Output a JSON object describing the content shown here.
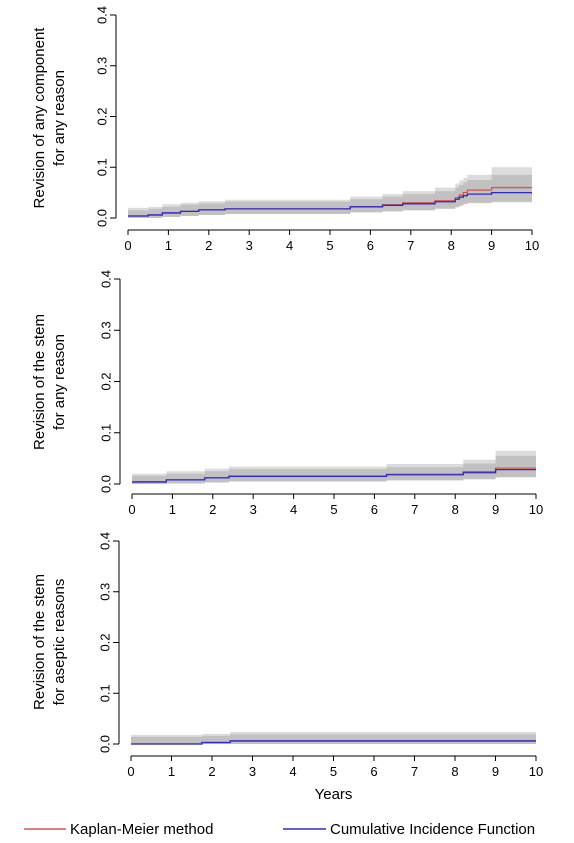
{
  "chart_data": [
    {
      "type": "line",
      "ylabel_lines": [
        "Revision of any component",
        "for any reason"
      ],
      "xlabel": "",
      "xlim": [
        0,
        10
      ],
      "ylim": [
        0,
        0.4
      ],
      "x_ticks": [
        "0",
        "1",
        "2",
        "3",
        "4",
        "5",
        "6",
        "7",
        "8",
        "9",
        "10"
      ],
      "y_ticks": [
        "0.0",
        "0.1",
        "0.2",
        "0.3",
        "0.4"
      ],
      "series": [
        {
          "name": "Kaplan-Meier method",
          "color": "#d9534f",
          "x": [
            0,
            0.5,
            0.85,
            1.3,
            1.75,
            2.4,
            5.5,
            6.3,
            6.8,
            7.6,
            8.1,
            8.2,
            8.3,
            8.4,
            9.0,
            10
          ],
          "y": [
            0.004,
            0.006,
            0.01,
            0.013,
            0.016,
            0.018,
            0.022,
            0.026,
            0.03,
            0.034,
            0.04,
            0.045,
            0.05,
            0.055,
            0.06,
            0.06
          ],
          "ci_lower": [
            0.0,
            0.0,
            0.002,
            0.004,
            0.006,
            0.008,
            0.011,
            0.013,
            0.016,
            0.019,
            0.022,
            0.025,
            0.028,
            0.031,
            0.033,
            0.033
          ],
          "ci_upper": [
            0.02,
            0.022,
            0.027,
            0.03,
            0.033,
            0.036,
            0.042,
            0.047,
            0.053,
            0.06,
            0.068,
            0.074,
            0.079,
            0.085,
            0.1,
            0.1
          ]
        },
        {
          "name": "Cumulative Incidence Function",
          "color": "#2b2bcc",
          "x": [
            0,
            0.5,
            0.85,
            1.3,
            1.75,
            2.4,
            5.5,
            6.3,
            6.8,
            7.6,
            8.1,
            8.2,
            8.3,
            8.4,
            9.0,
            10
          ],
          "y": [
            0.004,
            0.006,
            0.01,
            0.013,
            0.016,
            0.018,
            0.022,
            0.025,
            0.028,
            0.032,
            0.037,
            0.041,
            0.044,
            0.047,
            0.05,
            0.05
          ],
          "ci_lower": [
            0.0,
            0.0,
            0.002,
            0.004,
            0.006,
            0.008,
            0.011,
            0.013,
            0.015,
            0.018,
            0.021,
            0.024,
            0.027,
            0.029,
            0.031,
            0.031
          ],
          "ci_upper": [
            0.015,
            0.018,
            0.022,
            0.026,
            0.029,
            0.032,
            0.037,
            0.042,
            0.047,
            0.053,
            0.06,
            0.065,
            0.07,
            0.075,
            0.085,
            0.085
          ]
        }
      ]
    },
    {
      "type": "line",
      "ylabel_lines": [
        "Revision of the stem",
        "for any reason"
      ],
      "xlabel": "",
      "xlim": [
        0,
        10
      ],
      "ylim": [
        0,
        0.4
      ],
      "x_ticks": [
        "0",
        "1",
        "2",
        "3",
        "4",
        "5",
        "6",
        "7",
        "8",
        "9",
        "10"
      ],
      "y_ticks": [
        "0.0",
        "0.1",
        "0.2",
        "0.3",
        "0.4"
      ],
      "series": [
        {
          "name": "Kaplan-Meier method",
          "color": "#d9534f",
          "x": [
            0,
            0.85,
            1.8,
            2.4,
            6.3,
            8.2,
            9.0,
            10
          ],
          "y": [
            0.004,
            0.008,
            0.012,
            0.015,
            0.019,
            0.024,
            0.031,
            0.031
          ],
          "ci_lower": [
            0.0,
            0.001,
            0.003,
            0.005,
            0.007,
            0.01,
            0.014,
            0.014
          ],
          "ci_upper": [
            0.02,
            0.025,
            0.03,
            0.034,
            0.039,
            0.047,
            0.065,
            0.065
          ]
        },
        {
          "name": "Cumulative Incidence Function",
          "color": "#2b2bcc",
          "x": [
            0,
            0.85,
            1.8,
            2.4,
            6.3,
            8.2,
            9.0,
            10
          ],
          "y": [
            0.004,
            0.008,
            0.012,
            0.015,
            0.018,
            0.022,
            0.028,
            0.028
          ],
          "ci_lower": [
            0.0,
            0.001,
            0.003,
            0.005,
            0.007,
            0.009,
            0.013,
            0.013
          ],
          "ci_upper": [
            0.016,
            0.02,
            0.025,
            0.029,
            0.033,
            0.04,
            0.055,
            0.055
          ]
        }
      ]
    },
    {
      "type": "line",
      "ylabel_lines": [
        "Revision of the stem",
        "for aseptic reasons"
      ],
      "xlabel": "Years",
      "xlim": [
        0,
        10
      ],
      "ylim": [
        0,
        0.4
      ],
      "x_ticks": [
        "0",
        "1",
        "2",
        "3",
        "4",
        "5",
        "6",
        "7",
        "8",
        "9",
        "10"
      ],
      "y_ticks": [
        "0.0",
        "0.1",
        "0.2",
        "0.3",
        "0.4"
      ],
      "series": [
        {
          "name": "Kaplan-Meier method",
          "color": "#d9534f",
          "x": [
            0,
            1.75,
            2.45,
            10
          ],
          "y": [
            0.0,
            0.003,
            0.006,
            0.006
          ],
          "ci_lower": [
            0.0,
            0.0,
            0.0,
            0.0
          ],
          "ci_upper": [
            0.018,
            0.02,
            0.024,
            0.024
          ]
        },
        {
          "name": "Cumulative Incidence Function",
          "color": "#2b2bcc",
          "x": [
            0,
            1.75,
            2.45,
            10
          ],
          "y": [
            0.0,
            0.003,
            0.006,
            0.006
          ],
          "ci_lower": [
            0.0,
            0.0,
            0.0,
            0.0
          ],
          "ci_upper": [
            0.014,
            0.016,
            0.019,
            0.019
          ]
        }
      ]
    }
  ],
  "legend": [
    {
      "label": "Kaplan-Meier method",
      "color": "#d9534f"
    },
    {
      "label": "Cumulative Incidence Function",
      "color": "#2b2bcc"
    }
  ]
}
